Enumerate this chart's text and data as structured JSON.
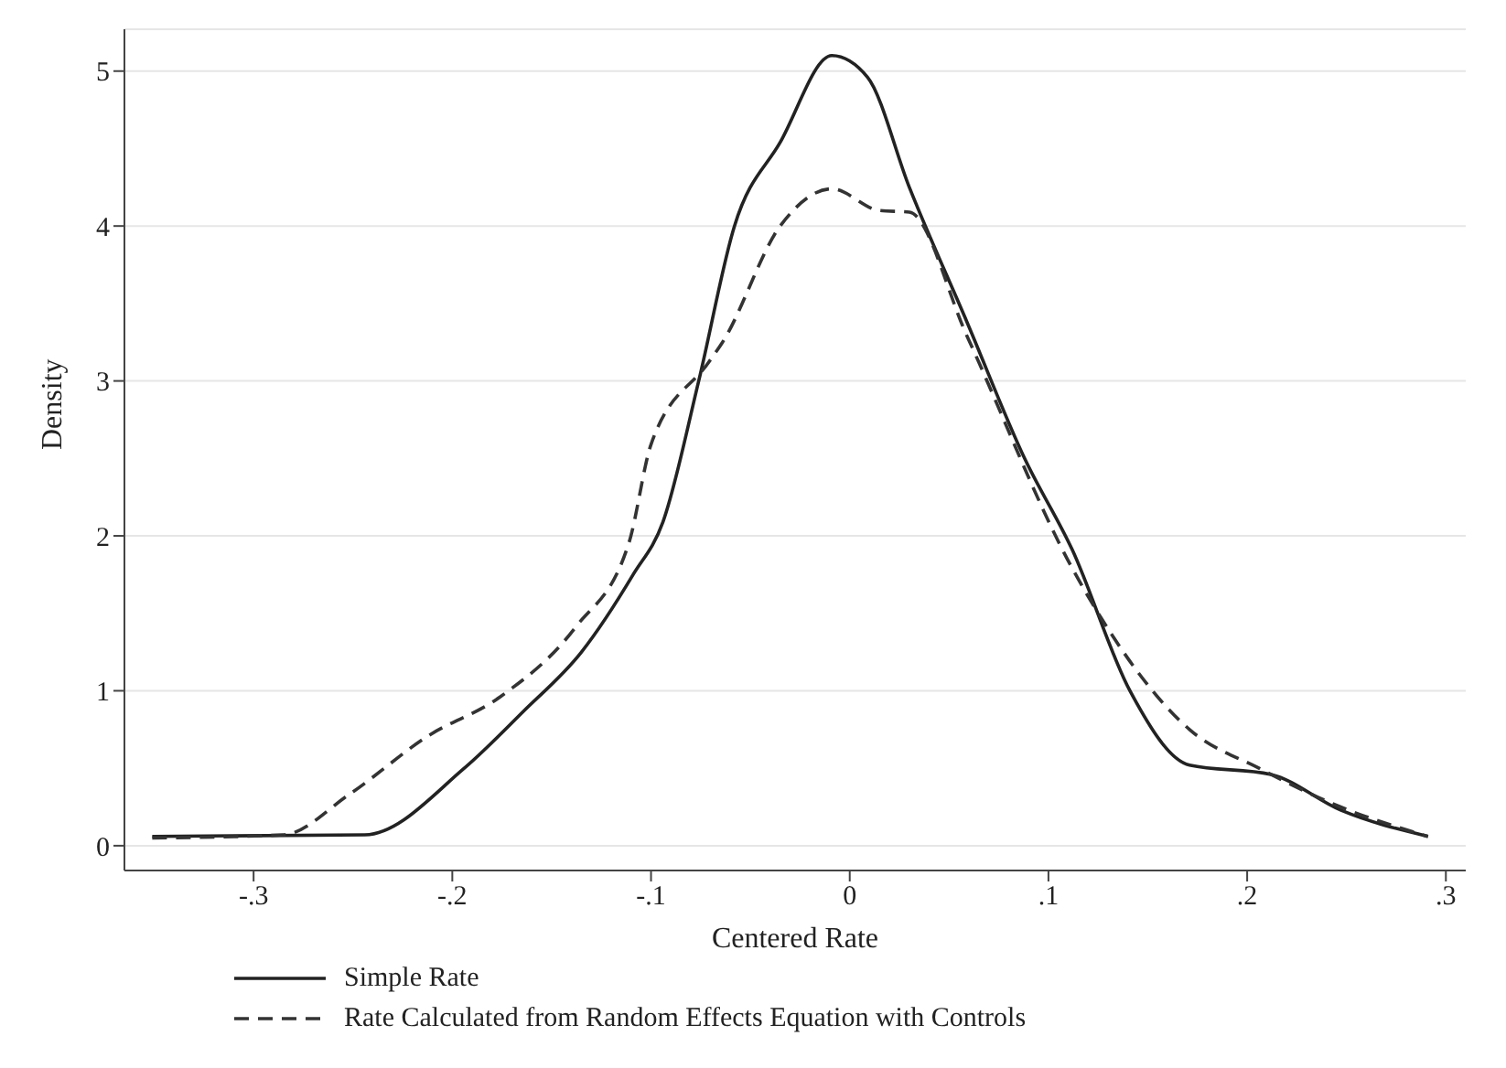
{
  "chart_data": {
    "type": "line",
    "xlabel": "Centered Rate",
    "ylabel": "Density",
    "xlim": [
      -0.365,
      0.31
    ],
    "ylim": [
      -0.16,
      5.27
    ],
    "xticks": [
      {
        "value": -0.3,
        "label": "-.3"
      },
      {
        "value": -0.2,
        "label": "-.2"
      },
      {
        "value": -0.1,
        "label": "-.1"
      },
      0,
      {
        "value": 0.1,
        "label": ".1"
      },
      {
        "value": 0.2,
        "label": ".2"
      },
      {
        "value": 0.3,
        "label": ".3"
      }
    ],
    "yticks": [
      0,
      1,
      2,
      3,
      4,
      5
    ],
    "grid": "y",
    "legend": "bottom",
    "marker": "none",
    "series": [
      {
        "name": "Simple Rate",
        "color": "#222222",
        "line_style": "solid",
        "x": [
          -0.351,
          -0.244,
          -0.194,
          -0.164,
          -0.135,
          -0.109,
          -0.094,
          -0.076,
          -0.058,
          -0.035,
          -0.009,
          0.009,
          0.03,
          0.059,
          0.088,
          0.112,
          0.141,
          0.171,
          0.212,
          0.247,
          0.291
        ],
        "values": [
          0.06,
          0.07,
          0.5,
          0.87,
          1.25,
          1.75,
          2.09,
          3.0,
          4.0,
          4.54,
          5.1,
          4.96,
          4.25,
          3.38,
          2.5,
          1.91,
          1.0,
          0.52,
          0.46,
          0.23,
          0.06
        ]
      },
      {
        "name": "Rate Calculated from Random Effects Equation with Controls",
        "color": "#333333",
        "line_style": "dashed",
        "x": [
          -0.351,
          -0.285,
          -0.252,
          -0.212,
          -0.176,
          -0.138,
          -0.111,
          -0.1,
          -0.071,
          -0.064,
          -0.035,
          -0.009,
          0.015,
          0.03,
          0.059,
          0.112,
          0.127,
          0.171,
          0.206,
          0.247,
          0.291
        ],
        "values": [
          0.05,
          0.07,
          0.33,
          0.71,
          0.96,
          1.41,
          1.96,
          2.59,
          3.12,
          3.25,
          4.0,
          4.24,
          4.1,
          4.09,
          3.29,
          1.79,
          1.46,
          0.75,
          0.5,
          0.25,
          0.06
        ]
      }
    ]
  }
}
